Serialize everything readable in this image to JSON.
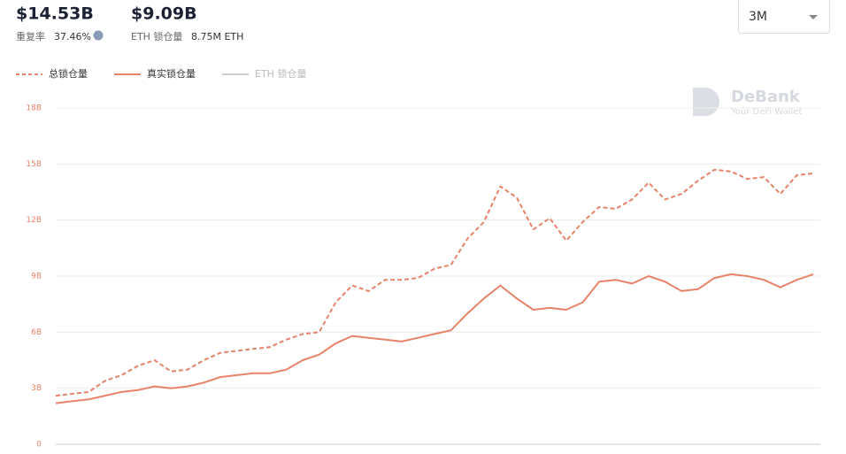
{
  "header": {
    "total_value": "$14.53B",
    "overlap_label": "重复率",
    "overlap_value": "37.46%",
    "real_value": "$9.09B",
    "eth_label": "ETH 锁仓量",
    "eth_value": "8.75M ETH",
    "range": "3M"
  },
  "watermark": {
    "brand": "DeBank",
    "tagline": "Your DeFi Wallet"
  },
  "chart_data": {
    "type": "line",
    "ylim": [
      0,
      18
    ],
    "yticks": [
      0,
      {
        "value": 3,
        "label": "3B"
      },
      {
        "value": 6,
        "label": "6B"
      },
      {
        "value": 9,
        "label": "9B"
      },
      {
        "value": 12,
        "label": "12B"
      },
      {
        "value": 15,
        "label": "15B"
      },
      {
        "value": 18,
        "label": "18B"
      }
    ],
    "grid": true,
    "series": [
      {
        "name": "总锁仓量",
        "color": "#e8836a",
        "dashed": true,
        "values": [
          2.6,
          2.7,
          2.8,
          3.4,
          3.7,
          4.2,
          4.5,
          3.9,
          4.0,
          4.5,
          4.9,
          5.0,
          5.1,
          5.2,
          5.6,
          5.9,
          6.0,
          7.6,
          8.5,
          8.2,
          8.8,
          8.8,
          8.9,
          9.4,
          9.6,
          11.0,
          11.9,
          13.8,
          13.2,
          11.5,
          12.1,
          10.9,
          11.9,
          12.7,
          12.6,
          13.1,
          14.0,
          13.1,
          13.4,
          14.1,
          14.7,
          14.6,
          14.2,
          14.3,
          13.4,
          14.4,
          14.5
        ]
      },
      {
        "name": "真实锁仓量",
        "color": "#e8836a",
        "dashed": false,
        "values": [
          2.2,
          2.3,
          2.4,
          2.6,
          2.8,
          2.9,
          3.1,
          3.0,
          3.1,
          3.3,
          3.6,
          3.7,
          3.8,
          3.8,
          4.0,
          4.5,
          4.8,
          5.4,
          5.8,
          5.7,
          5.6,
          5.5,
          5.7,
          5.9,
          6.1,
          7.0,
          7.8,
          8.5,
          7.8,
          7.2,
          7.3,
          7.2,
          7.6,
          8.7,
          8.8,
          8.6,
          9.0,
          8.7,
          8.2,
          8.3,
          8.9,
          9.1,
          9.0,
          8.8,
          8.4,
          8.8,
          9.1
        ]
      },
      {
        "name": "ETH 锁仓量",
        "color": "#cccccc",
        "dashed": false,
        "values": [
          null,
          null,
          null,
          null,
          null,
          null,
          null,
          null,
          null,
          null,
          null,
          null,
          null,
          null,
          null,
          null,
          null,
          null,
          null,
          null,
          null,
          null,
          null,
          null,
          null,
          null,
          null,
          null,
          null,
          null,
          null,
          null,
          null,
          null,
          null,
          null,
          null,
          null,
          null,
          null,
          null,
          null,
          null,
          null,
          null,
          null,
          null
        ]
      }
    ]
  }
}
